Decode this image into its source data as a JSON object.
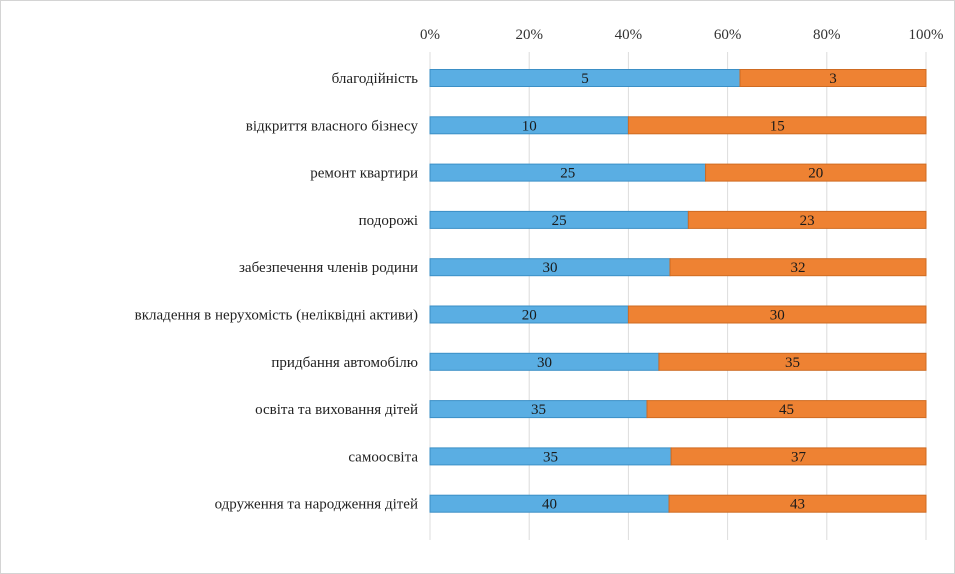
{
  "chart_data": {
    "type": "bar",
    "orientation": "horizontal",
    "stacked": "percent",
    "categories": [
      "благодійність",
      "відкриття власного бізнесу",
      "ремонт квартири",
      "подорожі",
      "забезпечення членів родини",
      "вкладення в нерухомість (неліквідні активи)",
      "придбання автомобілю",
      "освіта та виховання дітей",
      "самоосвіта",
      "одруження та народження дітей"
    ],
    "series": [
      {
        "color": "#5aaee3",
        "values": [
          5,
          10,
          25,
          25,
          30,
          20,
          30,
          35,
          35,
          40
        ]
      },
      {
        "color": "#ee8233",
        "values": [
          3,
          15,
          20,
          23,
          32,
          30,
          35,
          45,
          37,
          43
        ]
      }
    ],
    "x_ticks": [
      "0%",
      "20%",
      "40%",
      "60%",
      "80%",
      "100%"
    ],
    "xlim": [
      0,
      100
    ],
    "axis_position": "top",
    "grid": true,
    "legend": "none",
    "title": "",
    "xlabel": "",
    "ylabel": ""
  }
}
